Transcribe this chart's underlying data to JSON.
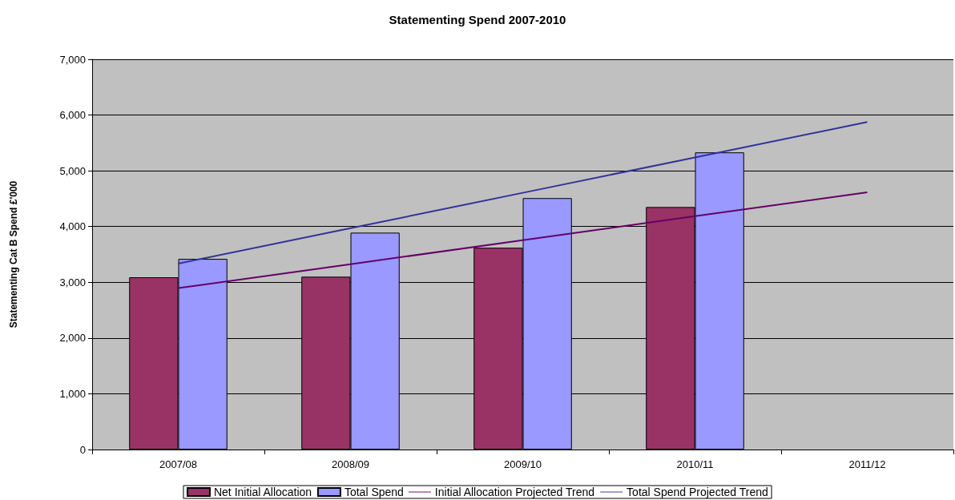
{
  "chart_data": {
    "type": "bar",
    "title": "Statementing Spend 2007-2010",
    "ylabel": "Statementing Cat B Spend £'000",
    "categories": [
      "2007/08",
      "2008/09",
      "2009/10",
      "2010/11",
      "2011/12"
    ],
    "series": [
      {
        "name": "Net Initial Allocation",
        "color": "#993366",
        "values": [
          3090,
          3100,
          3620,
          4350,
          null
        ]
      },
      {
        "name": "Total Spend",
        "color": "#9999ff",
        "values": [
          3420,
          3890,
          4510,
          5330,
          null
        ]
      },
      {
        "name": "Initial Allocation Projected Trend",
        "type": "line",
        "color": "#660066",
        "values": [
          2895,
          3325,
          3755,
          4185,
          4615
        ]
      },
      {
        "name": "Total Spend Projected Trend",
        "type": "line",
        "color": "#333399",
        "values": [
          3335,
          3970,
          4605,
          5240,
          5875
        ]
      }
    ],
    "ylim": [
      0,
      7000
    ],
    "yticks": [
      {
        "value": 0,
        "label": "0"
      },
      {
        "value": 1000,
        "label": "1,000"
      },
      {
        "value": 2000,
        "label": "2,000"
      },
      {
        "value": 3000,
        "label": "3,000"
      },
      {
        "value": 4000,
        "label": "4,000"
      },
      {
        "value": 5000,
        "label": "5,000"
      },
      {
        "value": 6000,
        "label": "6,000"
      },
      {
        "value": 7000,
        "label": "7,000"
      }
    ],
    "grid": "y",
    "legend": "bottom",
    "marker": "none",
    "line_style": "solid"
  }
}
